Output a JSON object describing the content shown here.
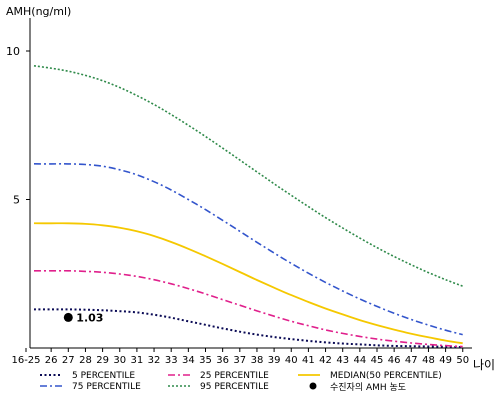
{
  "chart_data": {
    "type": "line",
    "title": "",
    "ylabel": "AMH(ng/ml)",
    "xlabel": "나이",
    "categories": [
      "16-25",
      "26",
      "27",
      "28",
      "29",
      "30",
      "31",
      "32",
      "33",
      "34",
      "35",
      "36",
      "37",
      "38",
      "39",
      "40",
      "41",
      "42",
      "43",
      "44",
      "45",
      "46",
      "47",
      "48",
      "49",
      "50"
    ],
    "yticks": [
      5,
      10
    ],
    "ylim": [
      0,
      11.0
    ],
    "grid": false,
    "series": [
      {
        "name": "5 PERCENTILE",
        "color": "#0a0a55",
        "dash": "2,2.5",
        "width": 2,
        "values": [
          1.3,
          1.3,
          1.3,
          1.29,
          1.27,
          1.24,
          1.2,
          1.12,
          1.02,
          0.9,
          0.78,
          0.66,
          0.55,
          0.45,
          0.37,
          0.3,
          0.24,
          0.19,
          0.15,
          0.12,
          0.09,
          0.07,
          0.06,
          0.05,
          0.04,
          0.03
        ]
      },
      {
        "name": "25 PERCENTILE",
        "color": "#e0208c",
        "dash": "7,3,2,3",
        "width": 1.6,
        "values": [
          2.6,
          2.6,
          2.6,
          2.58,
          2.55,
          2.49,
          2.41,
          2.3,
          2.16,
          2.0,
          1.82,
          1.63,
          1.44,
          1.25,
          1.07,
          0.9,
          0.75,
          0.61,
          0.49,
          0.39,
          0.3,
          0.23,
          0.17,
          0.12,
          0.08,
          0.05
        ]
      },
      {
        "name": "MEDIAN(50 PERCENTILE)",
        "color": "#f5c800",
        "dash": "",
        "width": 1.8,
        "values": [
          4.2,
          4.2,
          4.2,
          4.18,
          4.13,
          4.05,
          3.93,
          3.77,
          3.57,
          3.34,
          3.09,
          2.83,
          2.56,
          2.29,
          2.03,
          1.78,
          1.55,
          1.33,
          1.13,
          0.94,
          0.77,
          0.62,
          0.48,
          0.36,
          0.25,
          0.16
        ]
      },
      {
        "name": "75 PERCENTILE",
        "color": "#3355cc",
        "dash": "7,3,2,3",
        "width": 1.6,
        "values": [
          6.2,
          6.2,
          6.2,
          6.18,
          6.12,
          6.0,
          5.83,
          5.6,
          5.32,
          5.0,
          4.66,
          4.3,
          3.93,
          3.56,
          3.2,
          2.85,
          2.52,
          2.21,
          1.92,
          1.65,
          1.4,
          1.17,
          0.96,
          0.77,
          0.6,
          0.45
        ]
      },
      {
        "name": "95 PERCENTILE",
        "color": "#2f8a4a",
        "dash": "2,2",
        "width": 1.6,
        "values": [
          9.5,
          9.42,
          9.32,
          9.18,
          9.0,
          8.77,
          8.5,
          8.2,
          7.86,
          7.5,
          7.12,
          6.73,
          6.33,
          5.93,
          5.53,
          5.14,
          4.76,
          4.39,
          4.04,
          3.7,
          3.38,
          3.08,
          2.8,
          2.54,
          2.3,
          2.08
        ]
      }
    ],
    "marker": {
      "name": "수진자의 AMH 농도",
      "x": "27",
      "value": 1.03,
      "label": "1.03",
      "color": "#000000"
    },
    "legend_position": "bottom"
  }
}
